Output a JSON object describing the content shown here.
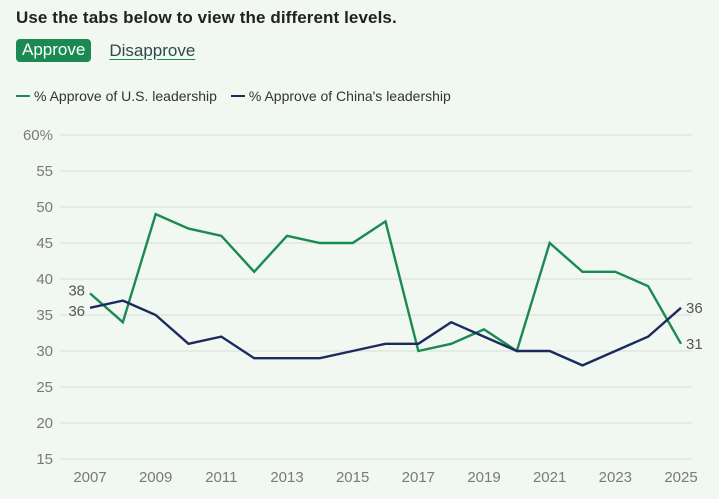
{
  "instruction": "Use the tabs below to view the different levels.",
  "tabs": [
    {
      "label": "Approve",
      "active": true
    },
    {
      "label": "Disapprove",
      "active": false
    }
  ],
  "colors": {
    "us": "#1a8a52",
    "china": "#1c2b5e",
    "grid": "#dfe6df",
    "tab_active_bg": "#1a8a52"
  },
  "chart_data": {
    "type": "line",
    "title": "",
    "xlabel": "",
    "ylabel": "",
    "x": [
      2007,
      2008,
      2009,
      2010,
      2011,
      2012,
      2013,
      2014,
      2015,
      2016,
      2017,
      2018,
      2019,
      2020,
      2021,
      2022,
      2023,
      2024,
      2025
    ],
    "series": [
      {
        "name": "% Approve of U.S. leadership",
        "color": "#1a8a52",
        "values": [
          38,
          34,
          49,
          47,
          46,
          41,
          46,
          45,
          45,
          48,
          30,
          31,
          33,
          30,
          45,
          41,
          41,
          39,
          31
        ]
      },
      {
        "name": "% Approve of China's leadership",
        "color": "#1c2b5e",
        "values": [
          36,
          37,
          35,
          31,
          32,
          29,
          29,
          29,
          30,
          31,
          31,
          34,
          32,
          30,
          30,
          28,
          30,
          32,
          36
        ]
      }
    ],
    "ylim": [
      15,
      60
    ],
    "yticks": [
      15,
      20,
      25,
      30,
      35,
      40,
      45,
      50,
      55,
      60
    ],
    "ytick_labels": [
      "15",
      "20",
      "25",
      "30",
      "35",
      "40",
      "45",
      "50",
      "55",
      "60%"
    ],
    "xticks": [
      2007,
      2009,
      2011,
      2013,
      2015,
      2017,
      2019,
      2021,
      2023,
      2025
    ],
    "xtick_labels": [
      "2007",
      "2009",
      "2011",
      "2013",
      "2015",
      "2017",
      "2019",
      "2021",
      "2023",
      "2025"
    ],
    "grid": true,
    "legend": "top-left",
    "annotations": {
      "start": [
        {
          "series": 0,
          "text": "38"
        },
        {
          "series": 1,
          "text": "36"
        }
      ],
      "end": [
        {
          "series": 1,
          "text": "36"
        },
        {
          "series": 0,
          "text": "31"
        }
      ]
    }
  }
}
